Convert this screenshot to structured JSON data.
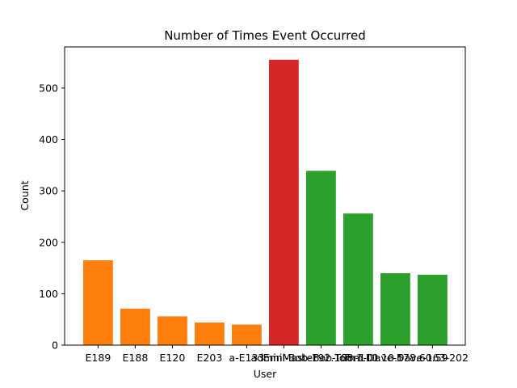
{
  "chart_data": {
    "type": "bar",
    "title": "Number of Times Event Occurred",
    "xlabel": "User",
    "ylabel": "Count",
    "ylim": [
      0,
      580
    ],
    "yticks": [
      0,
      100,
      200,
      300,
      400,
      500
    ],
    "grid": false,
    "categories": [
      "E189",
      "E188",
      "E120",
      "E203",
      "E133",
      "adminMaster",
      "Emil",
      "Bob",
      "Tom",
      "Dave"
    ],
    "tick_texts": [
      "E189",
      "E188",
      "E120",
      "E203",
      "a-E133",
      "adminMaster",
      "Emil-Bob-192.168.1.01",
      "Bob-Tom-110.10.5",
      "Tom-Dave-178.60.59",
      "Dave-163-202"
    ],
    "values": [
      165,
      71,
      56,
      44,
      40,
      555,
      339,
      256,
      140,
      137
    ],
    "colors": [
      "#ff7f0e",
      "#ff7f0e",
      "#ff7f0e",
      "#ff7f0e",
      "#ff7f0e",
      "#d62728",
      "#2ca02c",
      "#2ca02c",
      "#2ca02c",
      "#2ca02c"
    ]
  }
}
